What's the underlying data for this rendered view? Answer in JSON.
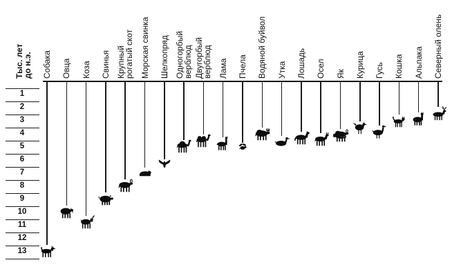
{
  "y_axis": {
    "title": "Тыс. лет до н.э.",
    "title_lines": [
      "Тыс. лет",
      "до н.э."
    ]
  },
  "chart_data": {
    "type": "bar",
    "variant": "drop-line-domestication-timeline",
    "title": "",
    "xlabel": "",
    "ylabel": "Тыс. лет до н.э.",
    "y_direction": "down",
    "ylim": [
      0,
      13.5
    ],
    "yticks": [
      1,
      2,
      3,
      4,
      5,
      6,
      7,
      8,
      9,
      10,
      11,
      12,
      13
    ],
    "grid": "off",
    "legend": "none",
    "value_unit": "thousand years BC",
    "categories": [
      "Собака",
      "Овца",
      "Коза",
      "Свинья",
      "Крупный\nрогатый скот",
      "Морская свинка",
      "Шелкопряд",
      "Одногорбый\nверблюд",
      "Двугорбый\nверблюд",
      "Лама",
      "Пчела",
      "Водяной буйвол",
      "Утка",
      "Лошадь",
      "Осел",
      "Як",
      "Курица",
      "Гусь",
      "Кошка",
      "Альпака",
      "Северный олень"
    ],
    "values": [
      13,
      10,
      10.8,
      9,
      8,
      7,
      6.4,
      5,
      4.6,
      4.8,
      5.1,
      4.1,
      4.7,
      4.4,
      4.5,
      4.2,
      3.6,
      3.9,
      3.1,
      2.9,
      2.5
    ],
    "icons": [
      "dog-icon",
      "sheep-icon",
      "goat-icon",
      "pig-icon",
      "cattle-icon",
      "guinea-pig-icon",
      "silkworm-icon",
      "dromedary-camel-icon",
      "bactrian-camel-icon",
      "llama-icon",
      "bee-icon",
      "water-buffalo-icon",
      "duck-icon",
      "horse-icon",
      "donkey-icon",
      "yak-icon",
      "chicken-icon",
      "goose-icon",
      "cat-icon",
      "alpaca-icon",
      "reindeer-icon"
    ]
  },
  "colors": {
    "ink": "#0d0d0d",
    "axis": "#141414",
    "background": "#ffffff"
  }
}
